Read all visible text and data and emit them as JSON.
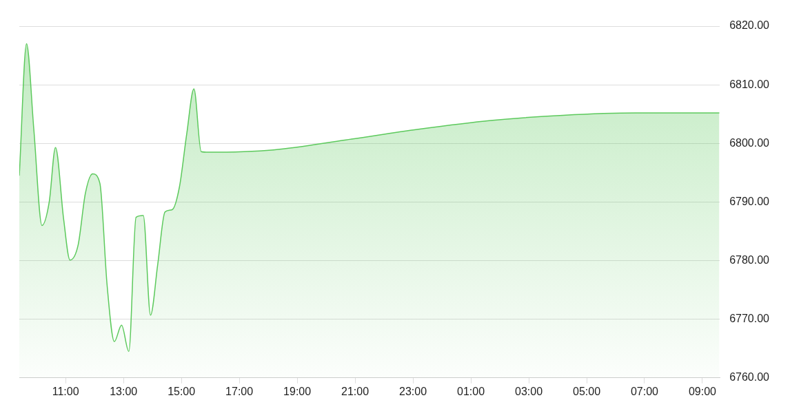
{
  "chart_data": {
    "type": "area",
    "x": [
      "--01-01T09:24",
      "--01-01T09:39",
      "--01-01T09:54",
      "--01-01T10:11",
      "--01-01T10:26",
      "--01-01T10:39",
      "--01-01T10:56",
      "--01-01T11:09",
      "--01-01T11:26",
      "--01-01T11:41",
      "--01-01T11:56",
      "--01-01T12:11",
      "--01-01T12:26",
      "--01-01T12:41",
      "--01-01T12:56",
      "--01-01T13:11",
      "--01-01T13:26",
      "--01-01T13:41",
      "--01-01T13:56",
      "--01-01T14:11",
      "--01-01T14:26",
      "--01-01T14:41",
      "--01-01T14:56",
      "--01-01T15:11",
      "--01-01T15:26",
      "--01-01T15:41",
      "--01-01T15:56",
      "--01-01T18:11",
      "--01-01T20:41",
      "--01-01T23:11",
      "--01-02T01:41",
      "--01-02T04:11",
      "--01-02T06:41",
      "--01-02T09:35"
    ],
    "series": [
      {
        "color": "#5cc95c",
        "values": [
          6794.5,
          6817,
          6802.5,
          6786,
          6790,
          6799.3,
          6787,
          6780.1,
          6782.7,
          6791.5,
          6794.8,
          6793.2,
          6775.8,
          6766.2,
          6769,
          6764.5,
          6787.4,
          6787.7,
          6770.7,
          6779.4,
          6788.3,
          6788.7,
          6792.6,
          6801.6,
          6809.3,
          6798.6,
          6798.5,
          6798.9,
          6800.6,
          6802.4,
          6803.9,
          6804.8,
          6805.2,
          6805.2
        ]
      }
    ],
    "xlim": [
      "--01-01T09:24",
      "--01-02T09:36"
    ],
    "xticks": [
      {
        "value": "--01-01T11:00",
        "label": "11:00"
      },
      {
        "value": "--01-01T13:00",
        "label": "13:00"
      },
      {
        "value": "--01-01T15:00",
        "label": "15:00"
      },
      {
        "value": "--01-01T17:00",
        "label": "17:00"
      },
      {
        "value": "--01-01T19:00",
        "label": "19:00"
      },
      {
        "value": "--01-01T21:00",
        "label": "21:00"
      },
      {
        "value": "--01-01T23:00",
        "label": "23:00"
      },
      {
        "value": "--01-02T01:00",
        "label": "01:00"
      },
      {
        "value": "--01-02T03:00",
        "label": "03:00"
      },
      {
        "value": "--01-02T05:00",
        "label": "05:00"
      },
      {
        "value": "--01-02T07:00",
        "label": "07:00"
      },
      {
        "value": "--01-02T09:00",
        "label": "09:00"
      }
    ],
    "ylim": [
      6760,
      6820
    ],
    "yticks": [
      {
        "value": 6760,
        "label": "6760.00"
      },
      {
        "value": 6770,
        "label": "6770.00"
      },
      {
        "value": 6780,
        "label": "6780.00"
      },
      {
        "value": 6790,
        "label": "6790.00"
      },
      {
        "value": 6800,
        "label": "6800.00"
      },
      {
        "value": 6810,
        "label": "6810.00"
      },
      {
        "value": 6820,
        "label": "6820.00"
      }
    ],
    "grid": "y",
    "legend": false,
    "marker": "none"
  }
}
